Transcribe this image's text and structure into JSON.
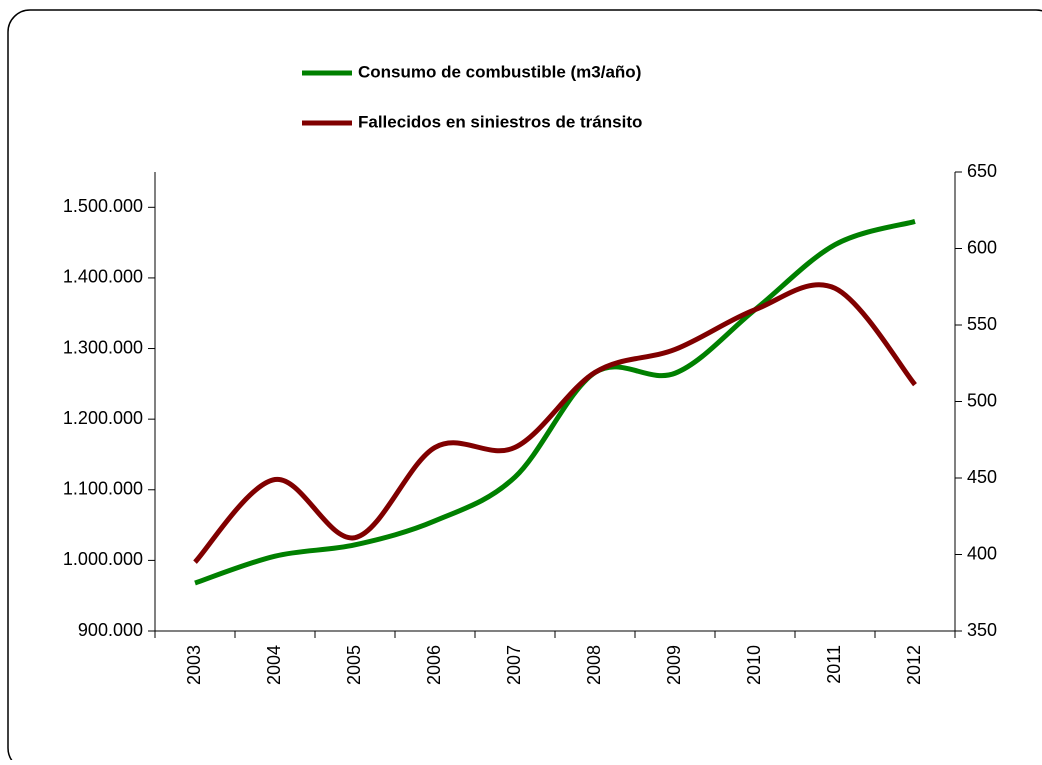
{
  "chart_data": {
    "type": "line",
    "categories": [
      "2003",
      "2004",
      "2005",
      "2006",
      "2007",
      "2008",
      "2009",
      "2010",
      "2011",
      "2012"
    ],
    "series": [
      {
        "name": "Consumo de combustible (m3/año)",
        "color": "#008000",
        "axis": "y",
        "values": [
          968000,
          1006000,
          1022000,
          1056000,
          1118000,
          1266000,
          1265000,
          1355000,
          1447000,
          1480000
        ]
      },
      {
        "name": "Fallecidos en siniestros de tránsito",
        "color": "#800000",
        "axis": "y2",
        "values": [
          395,
          449,
          411,
          470,
          470,
          519,
          534,
          560,
          574,
          511
        ]
      }
    ],
    "ylim": [
      900000,
      1550000
    ],
    "yticks": [
      {
        "value": 900000,
        "label": "900.000"
      },
      {
        "value": 1000000,
        "label": "1.000.000"
      },
      {
        "value": 1100000,
        "label": "1.100.000"
      },
      {
        "value": 1200000,
        "label": "1.200.000"
      },
      {
        "value": 1300000,
        "label": "1.300.000"
      },
      {
        "value": 1400000,
        "label": "1.400.000"
      },
      {
        "value": 1500000,
        "label": "1.500.000"
      }
    ],
    "y2lim": [
      350,
      650
    ],
    "y2ticks": [
      350,
      400,
      450,
      500,
      550,
      600,
      650
    ],
    "legend": "top"
  }
}
